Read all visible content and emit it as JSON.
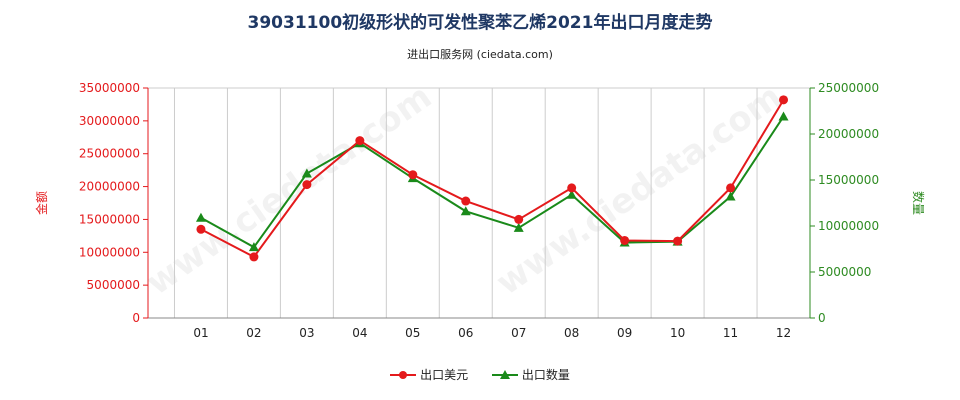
{
  "title": "39031100初级形状的可发性聚苯乙烯2021年出口月度走势",
  "subtitle": "进出口服务网 (ciedata.com)",
  "watermark": "www.ciedata.com",
  "colors": {
    "left_axis": "#e41a1c",
    "right_axis": "#2e8b22",
    "usd": "#e41a1c",
    "qty": "#1a8a1a",
    "grid": "#cccccc"
  },
  "chart_data": {
    "type": "line",
    "title": "39031100初级形状的可发性聚苯乙烯2021年出口月度走势",
    "subtitle": "进出口服务网 (ciedata.com)",
    "categories": [
      "01",
      "02",
      "03",
      "04",
      "05",
      "06",
      "07",
      "08",
      "09",
      "10",
      "11",
      "12"
    ],
    "y_left": {
      "label": "金额",
      "range": [
        0,
        35000000
      ],
      "ticks": [
        "0",
        "5000000",
        "10000000",
        "15000000",
        "20000000",
        "25000000",
        "30000000",
        "35000000"
      ]
    },
    "y_right": {
      "label": "数量",
      "range": [
        0,
        25000000
      ],
      "ticks": [
        "0",
        "5000000",
        "10000000",
        "15000000",
        "20000000",
        "25000000"
      ]
    },
    "series": [
      {
        "name": "出口美元",
        "axis": "left",
        "values": [
          13500000,
          9300000,
          20300000,
          27000000,
          21800000,
          17800000,
          15000000,
          19800000,
          11800000,
          11700000,
          19800000,
          33200000
        ]
      },
      {
        "name": "出口数量",
        "axis": "right",
        "values": [
          10900000,
          7700000,
          15700000,
          19000000,
          15200000,
          11600000,
          9800000,
          13400000,
          8200000,
          8300000,
          13200000,
          21900000
        ]
      }
    ],
    "grid": "vertical",
    "legend": "bottom-center"
  }
}
